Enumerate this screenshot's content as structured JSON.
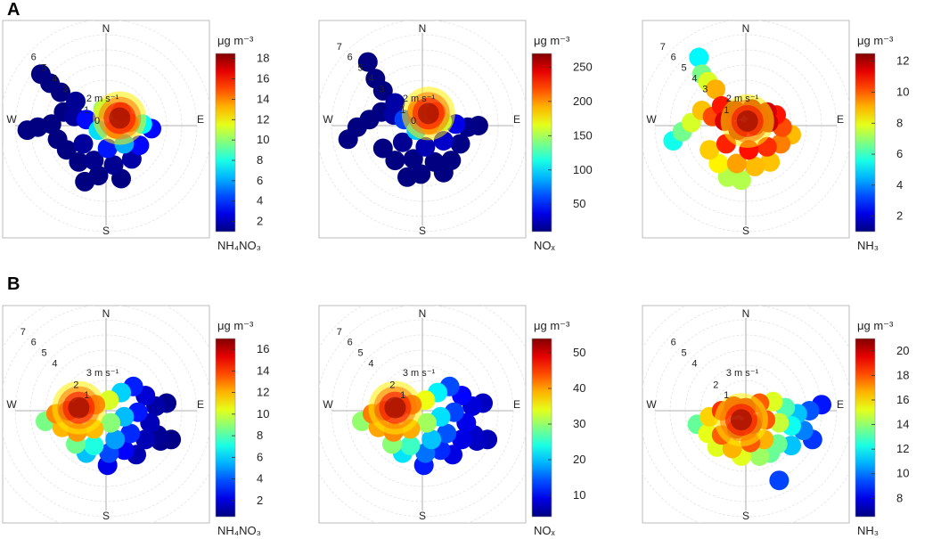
{
  "panels": [
    "A",
    "B"
  ],
  "chart_data": [
    {
      "type": "heatmap",
      "row": 0,
      "col": 0,
      "pollutant": "NH₄NO₃",
      "units": "μg m⁻³",
      "directions": [
        "N",
        "E",
        "S",
        "W"
      ],
      "ws_label": "2 m s⁻¹",
      "rings": [
        "0",
        "1",
        "3",
        "4",
        "5",
        "6"
      ],
      "ticks": [
        2,
        4,
        6,
        8,
        10,
        12,
        14,
        16,
        18
      ],
      "cmin": 1,
      "cmax": 18.5,
      "max_ws": 7,
      "hot": [
        0.9,
        0.5
      ],
      "spread": 0.55,
      "bias": 0,
      "shape": "A1"
    },
    {
      "type": "heatmap",
      "row": 0,
      "col": 1,
      "pollutant": "NOₓ",
      "units": "μg m⁻³",
      "directions": [
        "N",
        "E",
        "S",
        "W"
      ],
      "ws_label": "2 m s⁻¹",
      "rings": [
        "0",
        "1",
        "3",
        "4",
        "5",
        "6",
        "7"
      ],
      "ticks": [
        50,
        100,
        150,
        200,
        250
      ],
      "cmin": 10,
      "cmax": 270,
      "max_ws": 7,
      "hot": [
        0.4,
        0.8
      ],
      "spread": 0.45,
      "bias": 0,
      "shape": "A2"
    },
    {
      "type": "heatmap",
      "row": 0,
      "col": 2,
      "pollutant": "NH₃",
      "units": "μg m⁻³",
      "directions": [
        "N",
        "E",
        "S",
        "W"
      ],
      "ws_label": "2 m s⁻¹",
      "rings": [
        "1",
        "3",
        "4",
        "5",
        "6",
        "7"
      ],
      "ticks": [
        2,
        4,
        6,
        8,
        10,
        12
      ],
      "cmin": 1,
      "cmax": 12.5,
      "max_ws": 7,
      "hot": [
        0.1,
        0.3
      ],
      "spread": 1.6,
      "bias": 0.15,
      "shape": "A3"
    },
    {
      "type": "heatmap",
      "row": 1,
      "col": 0,
      "pollutant": "NH₄NO₃",
      "units": "μg m⁻³",
      "directions": [
        "N",
        "E",
        "S",
        "W"
      ],
      "ws_label": "3 m s⁻¹",
      "rings": [
        "1",
        "2",
        "4",
        "5",
        "6",
        "7"
      ],
      "ticks": [
        2,
        4,
        6,
        8,
        10,
        12,
        14,
        16
      ],
      "cmin": 0.5,
      "cmax": 17,
      "max_ws": 8,
      "hot": [
        -1.8,
        0.2
      ],
      "spread": 1.0,
      "bias": 0,
      "shape": "B"
    },
    {
      "type": "heatmap",
      "row": 1,
      "col": 1,
      "pollutant": "NOₓ",
      "units": "μg m⁻³",
      "directions": [
        "N",
        "E",
        "S",
        "W"
      ],
      "ws_label": "3 m s⁻¹",
      "rings": [
        "1",
        "2",
        "4",
        "5",
        "6",
        "7"
      ],
      "ticks": [
        10,
        20,
        30,
        40,
        50
      ],
      "cmin": 4,
      "cmax": 54,
      "max_ws": 8,
      "hot": [
        -1.8,
        0.2
      ],
      "spread": 1.0,
      "bias": 0.05,
      "shape": "B"
    },
    {
      "type": "heatmap",
      "row": 1,
      "col": 2,
      "pollutant": "NH₃",
      "units": "μg m⁻³",
      "directions": [
        "N",
        "E",
        "S",
        "W"
      ],
      "ws_label": "3 m s⁻¹",
      "rings": [
        "1",
        "2",
        "4",
        "5",
        "6"
      ],
      "ticks": [
        8,
        10,
        12,
        14,
        16,
        18,
        20
      ],
      "cmin": 6.5,
      "cmax": 21,
      "max_ws": 8,
      "hot": [
        -0.3,
        -0.6
      ],
      "spread": 1.1,
      "bias": 0.1,
      "shape": "B3"
    }
  ]
}
